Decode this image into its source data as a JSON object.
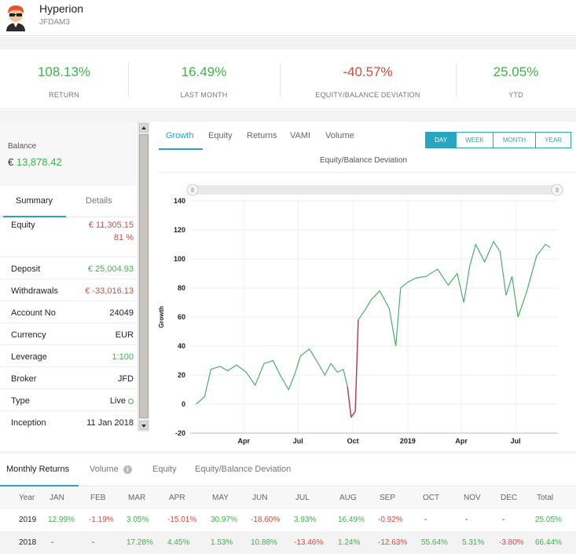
{
  "account": {
    "name": "Hyperion",
    "code": "JFDAM3"
  },
  "stats": [
    {
      "value": "108.13%",
      "label": "RETURN",
      "color": "#3fb24a"
    },
    {
      "value": "16.49%",
      "label": "LAST MONTH",
      "color": "#3fb24a"
    },
    {
      "value": "-40.57%",
      "label": "EQUITY/BALANCE DEVIATION",
      "color": "#d9483b"
    },
    {
      "value": "25.05%",
      "label": "YTD",
      "color": "#3fb24a"
    }
  ],
  "balance": {
    "label": "Balance",
    "currency": "€",
    "value": "13,878.42"
  },
  "left_tabs": [
    "Summary",
    "Details"
  ],
  "summary": [
    {
      "key": "Equity",
      "value": "€ 11,305.15",
      "sub": "81 %",
      "color": "#d9483b"
    },
    {
      "key": "Deposit",
      "value": "€ 25,004.93",
      "color": "#3fb24a"
    },
    {
      "key": "Withdrawals",
      "value": "€ -33,016.13",
      "color": "#d9483b"
    },
    {
      "key": "Account No",
      "value": "24049",
      "color": "#222222"
    },
    {
      "key": "Currency",
      "value": "EUR",
      "color": "#222222"
    },
    {
      "key": "Leverage",
      "value": "1:100",
      "color": "#3fb24a"
    },
    {
      "key": "Broker",
      "value": "JFD",
      "color": "#222222"
    },
    {
      "key": "Type",
      "value": "Live",
      "color": "#222222"
    },
    {
      "key": "Inception",
      "value": "11 Jan 2018",
      "color": "#222222"
    }
  ],
  "main_tabs": [
    "Growth",
    "Equity",
    "Returns",
    "VAMI",
    "Volume"
  ],
  "periods": [
    "DAY",
    "WEEK",
    "MONTH",
    "YEAR"
  ],
  "chart_title": "Equity/Balance Deviation",
  "chart_data": {
    "type": "line",
    "title": "Equity/Balance Deviation",
    "ylabel": "Growth",
    "xlabel": "",
    "ylim": [
      -20,
      140
    ],
    "yticks": [
      -20,
      0,
      20,
      40,
      60,
      80,
      100,
      120,
      140
    ],
    "xticks": [
      "Apr",
      "Jul",
      "Oct",
      "2019",
      "Apr",
      "Jul"
    ],
    "grid": true,
    "series": [
      {
        "color": "#4caf6a",
        "x": [
          "2018-01-11",
          "2018-01-25",
          "2018-02-05",
          "2018-02-20",
          "2018-03-05",
          "2018-03-20",
          "2018-04-05",
          "2018-04-20",
          "2018-05-05",
          "2018-05-20",
          "2018-06-01",
          "2018-06-15",
          "2018-06-25",
          "2018-07-05",
          "2018-07-20",
          "2018-08-01",
          "2018-08-15",
          "2018-08-25",
          "2018-09-05",
          "2018-09-15",
          "2018-09-22",
          "2018-09-28",
          "2018-10-05",
          "2018-10-10",
          "2018-10-20",
          "2018-11-01",
          "2018-11-15",
          "2018-12-01",
          "2018-12-12",
          "2018-12-20",
          "2019-01-01",
          "2019-01-15",
          "2019-02-01",
          "2019-02-20",
          "2019-03-10",
          "2019-03-25",
          "2019-04-05",
          "2019-04-15",
          "2019-04-25",
          "2019-05-10",
          "2019-05-25",
          "2019-06-05",
          "2019-06-15",
          "2019-06-25",
          "2019-07-05",
          "2019-07-20",
          "2019-08-05",
          "2019-08-20",
          "2019-08-28"
        ],
        "y": [
          0,
          5,
          24,
          26,
          23,
          27,
          22,
          13,
          28,
          30,
          20,
          10,
          20,
          33,
          38,
          30,
          20,
          28,
          22,
          24,
          12,
          -9,
          -5,
          58,
          64,
          72,
          78,
          66,
          40,
          80,
          84,
          87,
          88,
          93,
          82,
          90,
          70,
          95,
          110,
          98,
          112,
          105,
          75,
          88,
          60,
          78,
          102,
          110,
          108
        ]
      }
    ],
    "negative_color": "#c0394b"
  },
  "monthly": {
    "tabs": [
      "Monthly Returns",
      "Volume",
      "Equity",
      "Equity/Balance Deviation"
    ],
    "headers": [
      "Year",
      "JAN",
      "FEB",
      "MAR",
      "APR",
      "MAY",
      "JUN",
      "JUL",
      "AUG",
      "SEP",
      "OCT",
      "NOV",
      "DEC",
      "Total"
    ],
    "rows": [
      {
        "year": "2019",
        "values": [
          "12.99%",
          "-1.19%",
          "3.05%",
          "-15.01%",
          "30.97%",
          "-18.60%",
          "3.93%",
          "16.49%",
          "-0.92%",
          "-",
          "-",
          "-",
          "25.05%"
        ]
      },
      {
        "year": "2018",
        "values": [
          "-",
          "-",
          "17.28%",
          "4.45%",
          "1.53%",
          "10.88%",
          "-13.46%",
          "1.24%",
          "-12.63%",
          "55.64%",
          "5.31%",
          "-3.80%",
          "66.44%"
        ]
      }
    ]
  }
}
